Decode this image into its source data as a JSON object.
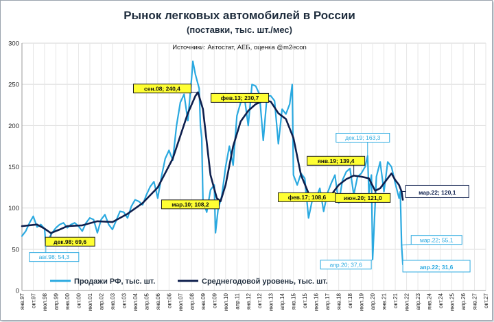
{
  "chart_data": {
    "type": "line",
    "title": "Рынок легковых автомобилей в России",
    "subtitle": "(поставки, тыс. шт./мес)",
    "source": "Источники: Автостат, АЕБ, оценка @m2econ",
    "ylim": [
      0,
      300
    ],
    "yticks": [
      "0",
      "50",
      "100",
      "150",
      "200",
      "250",
      "300"
    ],
    "grid": true,
    "legend_placement": "bottom-left",
    "x_start": "янв.97",
    "x_end": "окт.27",
    "xticks": [
      "янв.97",
      "окт.97",
      "июл.98",
      "апр.99",
      "янв.00",
      "окт.00",
      "июл.01",
      "апр.02",
      "янв.03",
      "окт.03",
      "июл.04",
      "апр.05",
      "янв.06",
      "окт.06",
      "июл.07",
      "апр.08",
      "янв.09",
      "окт.09",
      "июл.10",
      "апр.11",
      "янв.12",
      "окт.12",
      "июл.13",
      "апр.14",
      "янв.15",
      "окт.15",
      "июл.16",
      "апр.17",
      "янв.18",
      "окт.18",
      "июл.19",
      "апр.20",
      "янв.21",
      "окт.21",
      "июл.22",
      "апр.23",
      "янв.24",
      "окт.24",
      "июл.25",
      "апр.26",
      "янв.27",
      "окт.27"
    ],
    "series": [
      {
        "name": "Продажи РФ, тыс. шт.",
        "color": "#2aa9e0",
        "points": [
          [
            "янв.97",
            66
          ],
          [
            "апр.97",
            72
          ],
          [
            "июл.97",
            82
          ],
          [
            "окт.97",
            90
          ],
          [
            "янв.98",
            77
          ],
          [
            "апр.98",
            80
          ],
          [
            "июл.98",
            75
          ],
          [
            "авг.98",
            54.3
          ],
          [
            "окт.98",
            62
          ],
          [
            "янв.99",
            70
          ],
          [
            "апр.99",
            76
          ],
          [
            "июл.99",
            80
          ],
          [
            "окт.99",
            82
          ],
          [
            "янв.00",
            76
          ],
          [
            "апр.00",
            80
          ],
          [
            "июл.00",
            82
          ],
          [
            "окт.00",
            78
          ],
          [
            "янв.01",
            72
          ],
          [
            "апр.01",
            82
          ],
          [
            "июл.01",
            88
          ],
          [
            "окт.01",
            86
          ],
          [
            "янв.02",
            70
          ],
          [
            "апр.02",
            86
          ],
          [
            "июл.02",
            92
          ],
          [
            "окт.02",
            80
          ],
          [
            "янв.03",
            74
          ],
          [
            "апр.03",
            85
          ],
          [
            "июл.03",
            96
          ],
          [
            "окт.03",
            95
          ],
          [
            "янв.04",
            88
          ],
          [
            "апр.04",
            102
          ],
          [
            "июл.04",
            110
          ],
          [
            "окт.04",
            108
          ],
          [
            "янв.05",
            104
          ],
          [
            "апр.05",
            116
          ],
          [
            "июл.05",
            126
          ],
          [
            "окт.05",
            132
          ],
          [
            "янв.06",
            112
          ],
          [
            "апр.06",
            138
          ],
          [
            "июл.06",
            160
          ],
          [
            "окт.06",
            170
          ],
          [
            "янв.07",
            158
          ],
          [
            "апр.07",
            200
          ],
          [
            "июл.07",
            228
          ],
          [
            "окт.07",
            238
          ],
          [
            "янв.08",
            206
          ],
          [
            "апр.08",
            258
          ],
          [
            "май.08",
            278
          ],
          [
            "июл.08",
            262
          ],
          [
            "окт.08",
            245
          ],
          [
            "ноя.08",
            200
          ],
          [
            "дек.08",
            185
          ],
          [
            "янв.09",
            110
          ],
          [
            "апр.09",
            95
          ],
          [
            "июл.09",
            122
          ],
          [
            "окт.09",
            128
          ],
          [
            "ноя.09",
            70
          ],
          [
            "янв.10",
            98
          ],
          [
            "апр.10",
            115
          ],
          [
            "июл.10",
            150
          ],
          [
            "окт.10",
            175
          ],
          [
            "янв.11",
            152
          ],
          [
            "апр.11",
            212
          ],
          [
            "июл.11",
            228
          ],
          [
            "окт.11",
            234
          ],
          [
            "янв.12",
            200
          ],
          [
            "апр.12",
            250
          ],
          [
            "июл.12",
            248
          ],
          [
            "окт.12",
            238
          ],
          [
            "янв.13",
            182
          ],
          [
            "апр.13",
            236
          ],
          [
            "июл.13",
            236
          ],
          [
            "окт.13",
            230
          ],
          [
            "янв.14",
            178
          ],
          [
            "апр.14",
            220
          ],
          [
            "июл.14",
            214
          ],
          [
            "окт.14",
            226
          ],
          [
            "дек.14",
            250
          ],
          [
            "янв.15",
            140
          ],
          [
            "апр.15",
            128
          ],
          [
            "июл.15",
            142
          ],
          [
            "окт.15",
            136
          ],
          [
            "янв.16",
            88
          ],
          [
            "апр.16",
            110
          ],
          [
            "июл.16",
            112
          ],
          [
            "окт.16",
            124
          ],
          [
            "янв.17",
            96
          ],
          [
            "апр.17",
            118
          ],
          [
            "июл.17",
            130
          ],
          [
            "окт.17",
            140
          ],
          [
            "янв.18",
            106
          ],
          [
            "апр.18",
            134
          ],
          [
            "июл.18",
            144
          ],
          [
            "окт.18",
            148
          ],
          [
            "янв.19",
            116
          ],
          [
            "апр.19",
            138
          ],
          [
            "июл.19",
            142
          ],
          [
            "окт.19",
            150
          ],
          [
            "дек.19",
            163.3
          ],
          [
            "янв.20",
            118
          ],
          [
            "мар.20",
            140
          ],
          [
            "апр.20",
            37.6
          ],
          [
            "май.20",
            72
          ],
          [
            "июл.20",
            138
          ],
          [
            "окт.20",
            156
          ],
          [
            "янв.21",
            120
          ],
          [
            "апр.21",
            156
          ],
          [
            "июл.21",
            150
          ],
          [
            "окт.21",
            130
          ],
          [
            "янв.22",
            112
          ],
          [
            "фев.22",
            120
          ],
          [
            "мар.22",
            55.1
          ],
          [
            "апр.22",
            31.6
          ]
        ]
      },
      {
        "name": "Среднегодовой уровень, тыс. шт.",
        "color": "#0e1f4d",
        "points": [
          [
            "янв.97",
            78
          ],
          [
            "янв.98",
            80
          ],
          [
            "июл.98",
            75
          ],
          [
            "дек.98",
            69.6
          ],
          [
            "июл.99",
            74
          ],
          [
            "янв.00",
            78
          ],
          [
            "янв.01",
            79
          ],
          [
            "янв.02",
            84
          ],
          [
            "янв.03",
            83
          ],
          [
            "янв.04",
            93
          ],
          [
            "янв.05",
            106
          ],
          [
            "янв.06",
            125
          ],
          [
            "янв.07",
            160
          ],
          [
            "янв.08",
            215
          ],
          [
            "июл.08",
            236
          ],
          [
            "сен.08",
            240.4
          ],
          [
            "янв.09",
            220
          ],
          [
            "июл.09",
            140
          ],
          [
            "дек.09",
            112
          ],
          [
            "мар.10",
            108.2
          ],
          [
            "июл.10",
            128
          ],
          [
            "янв.11",
            175
          ],
          [
            "июл.11",
            205
          ],
          [
            "янв.12",
            218
          ],
          [
            "июл.12",
            226
          ],
          [
            "фев.13",
            230.7
          ],
          [
            "июл.13",
            229
          ],
          [
            "янв.14",
            215
          ],
          [
            "июл.14",
            208
          ],
          [
            "янв.15",
            185
          ],
          [
            "июл.15",
            140
          ],
          [
            "янв.16",
            118
          ],
          [
            "июл.16",
            110
          ],
          [
            "фев.17",
            108.6
          ],
          [
            "июл.17",
            116
          ],
          [
            "янв.18",
            128
          ],
          [
            "июл.18",
            135
          ],
          [
            "янв.19",
            139.4
          ],
          [
            "июл.19",
            138
          ],
          [
            "янв.20",
            136
          ],
          [
            "июн.20",
            121.0
          ],
          [
            "окт.20",
            124
          ],
          [
            "янв.21",
            130
          ],
          [
            "июл.21",
            142
          ],
          [
            "окт.21",
            134
          ],
          [
            "янв.22",
            128
          ],
          [
            "мар.22",
            120.1
          ],
          [
            "апр.22",
            110
          ]
        ]
      }
    ],
    "annotations": [
      {
        "text": "сен.08;  240,4",
        "x": "сен.08",
        "y": 240.4,
        "style": "yellow"
      },
      {
        "text": "фев.13;  230,7",
        "x": "фев.13",
        "y": 230.7,
        "style": "yellow"
      },
      {
        "text": "мар.10;  108,2",
        "x": "мар.10",
        "y": 108.2,
        "style": "yellow"
      },
      {
        "text": "фев.17;  108,6",
        "x": "фев.17",
        "y": 108.6,
        "style": "yellow"
      },
      {
        "text": "янв.19;  139,4",
        "x": "янв.19",
        "y": 139.4,
        "style": "yellow"
      },
      {
        "text": "июн.20;  121,0",
        "x": "июн.20",
        "y": 121.0,
        "style": "yellow"
      },
      {
        "text": "дек.98;  69,6",
        "x": "дек.98",
        "y": 69.6,
        "style": "yellow"
      },
      {
        "text": "авг.98;  54,3",
        "x": "авг.98",
        "y": 54.3,
        "style": "blue"
      },
      {
        "text": "дек.19;  163,3",
        "x": "дек.19",
        "y": 163.3,
        "style": "blue"
      },
      {
        "text": "апр.20;  37,6",
        "x": "апр.20",
        "y": 37.6,
        "style": "blue"
      },
      {
        "text": "мар.22;  55,1",
        "x": "мар.22",
        "y": 55.1,
        "style": "blue"
      },
      {
        "text": "апр.22;  31,6",
        "x": "апр.22",
        "y": 31.6,
        "style": "blue-big"
      },
      {
        "text": "мар.22;   120,1",
        "x": "мар.22",
        "y": 120.1,
        "style": "navy-big"
      }
    ]
  }
}
